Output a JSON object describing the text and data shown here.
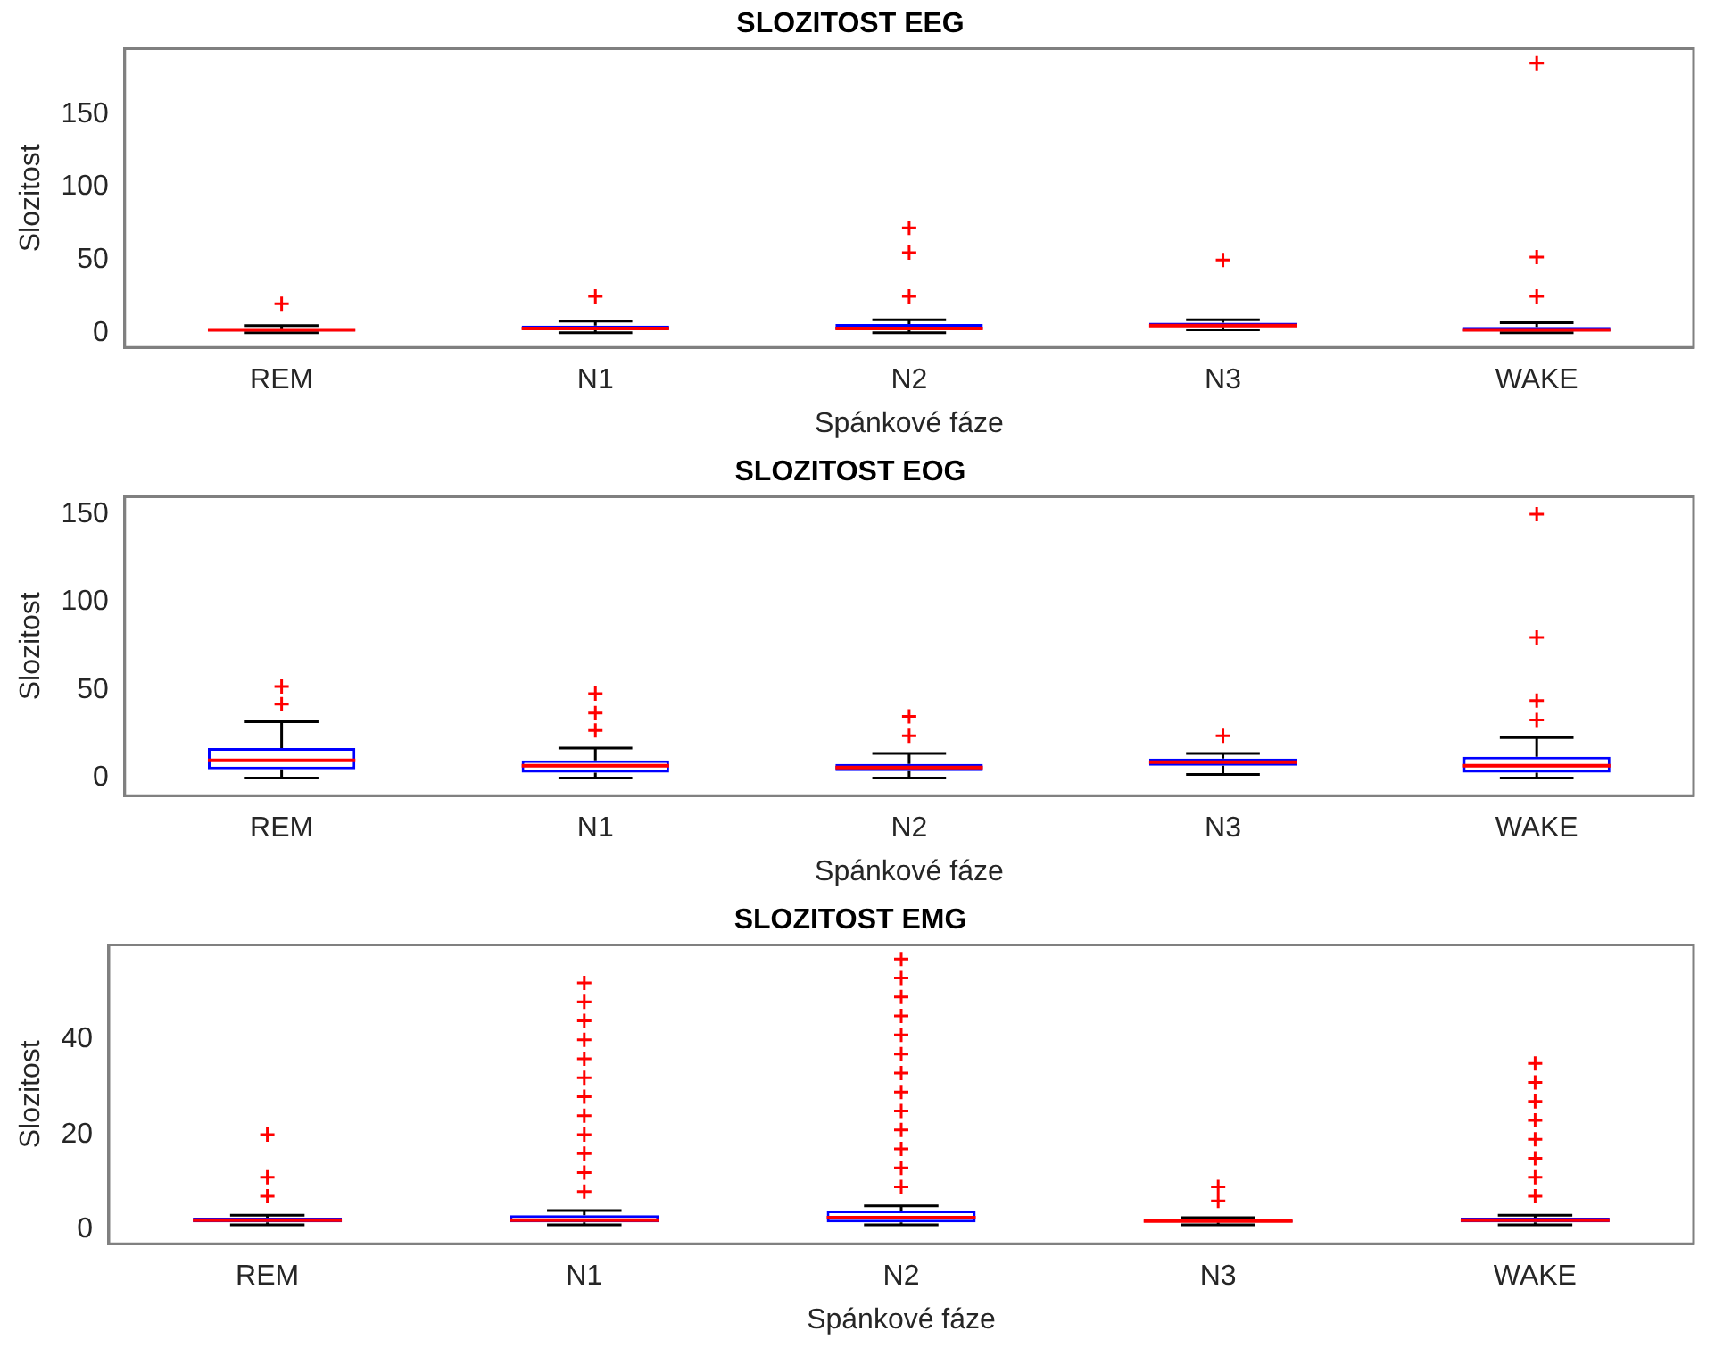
{
  "chart_data": [
    {
      "type": "box",
      "title": "SLOZITOST EEG",
      "xlabel": "Spánkové fáze",
      "ylabel": "Slozitost",
      "categories": [
        "REM",
        "N1",
        "N2",
        "N3",
        "WAKE"
      ],
      "ylim": [
        -10,
        195
      ],
      "yticks": [
        0,
        50,
        100,
        150
      ],
      "grid": false,
      "legend": false,
      "marker": "cross",
      "series": [
        {
          "color": "#0000ff",
          "boxes": [
            {
              "low": 0,
              "q1": 1,
              "median": 2,
              "q3": 3,
              "high": 5,
              "outliers": [
                20
              ]
            },
            {
              "low": 0,
              "q1": 2,
              "median": 3,
              "q3": 5,
              "high": 8,
              "outliers": [
                25
              ]
            },
            {
              "low": 0,
              "q1": 2,
              "median": 3,
              "q3": 6,
              "high": 9,
              "outliers": [
                25,
                55,
                72
              ]
            },
            {
              "low": 2,
              "q1": 4,
              "median": 5,
              "q3": 7,
              "high": 9,
              "outliers": [
                50
              ]
            },
            {
              "low": 0,
              "q1": 1,
              "median": 2,
              "q3": 4,
              "high": 7,
              "outliers": [
                25,
                52,
                185
              ]
            }
          ]
        }
      ]
    },
    {
      "type": "box",
      "title": "SLOZITOST EOG",
      "xlabel": "Spánkové fáze",
      "ylabel": "Slozitost",
      "categories": [
        "REM",
        "N1",
        "N2",
        "N3",
        "WAKE"
      ],
      "ylim": [
        -10,
        160
      ],
      "yticks": [
        0,
        50,
        100,
        150
      ],
      "grid": false,
      "legend": false,
      "marker": "cross",
      "series": [
        {
          "color": "#0000ff",
          "boxes": [
            {
              "low": 0,
              "q1": 5,
              "median": 10,
              "q3": 17,
              "high": 32,
              "outliers": [
                42,
                52
              ]
            },
            {
              "low": 0,
              "q1": 3,
              "median": 7,
              "q3": 10,
              "high": 17,
              "outliers": [
                27,
                37,
                48
              ]
            },
            {
              "low": 0,
              "q1": 4,
              "median": 6,
              "q3": 8,
              "high": 14,
              "outliers": [
                24,
                35
              ]
            },
            {
              "low": 2,
              "q1": 7,
              "median": 9,
              "q3": 11,
              "high": 14,
              "outliers": [
                24
              ]
            },
            {
              "low": 0,
              "q1": 3,
              "median": 7,
              "q3": 12,
              "high": 23,
              "outliers": [
                33,
                44,
                80,
                150
              ]
            }
          ]
        }
      ]
    },
    {
      "type": "box",
      "title": "SLOZITOST EMG",
      "xlabel": "Spánkové fáze",
      "ylabel": "Slozitost",
      "categories": [
        "REM",
        "N1",
        "N2",
        "N3",
        "WAKE"
      ],
      "ylim": [
        -3,
        60
      ],
      "yticks": [
        0,
        20,
        40
      ],
      "grid": false,
      "legend": false,
      "marker": "cross",
      "series": [
        {
          "color": "#0000ff",
          "boxes": [
            {
              "low": 1,
              "q1": 1.5,
              "median": 2,
              "q3": 2.5,
              "high": 3,
              "outliers": [
                7,
                11,
                20
              ]
            },
            {
              "low": 1,
              "q1": 1.5,
              "median": 2,
              "q3": 3,
              "high": 4,
              "outliers": [
                8,
                12,
                16,
                20,
                24,
                28,
                32,
                36,
                40,
                44,
                48,
                52
              ]
            },
            {
              "low": 1,
              "q1": 1.5,
              "median": 2.5,
              "q3": 4,
              "high": 5,
              "outliers": [
                9,
                13,
                17,
                21,
                25,
                29,
                33,
                37,
                41,
                45,
                49,
                53,
                57
              ]
            },
            {
              "low": 1,
              "q1": 1.5,
              "median": 1.8,
              "q3": 2,
              "high": 2.5,
              "outliers": [
                6,
                9
              ]
            },
            {
              "low": 1,
              "q1": 1.5,
              "median": 2,
              "q3": 2.5,
              "high": 3,
              "outliers": [
                7,
                11,
                15,
                19,
                23,
                27,
                31,
                35
              ]
            }
          ]
        }
      ]
    }
  ]
}
